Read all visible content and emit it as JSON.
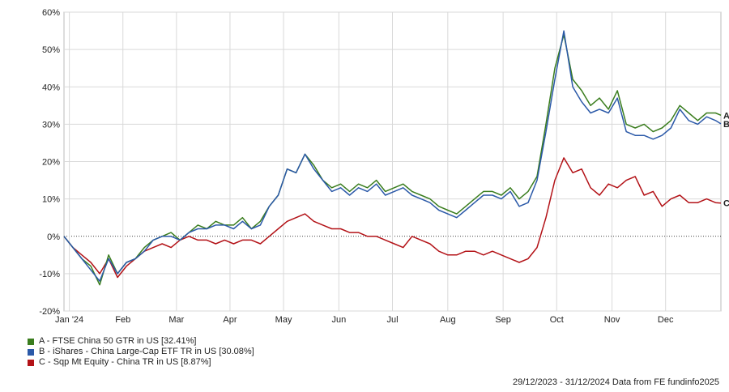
{
  "chart_data": {
    "type": "line",
    "ylim": [
      -20,
      60
    ],
    "y_ticks": [
      60,
      50,
      40,
      30,
      20,
      10,
      0,
      -10,
      -20
    ],
    "y_tick_labels": [
      "60%",
      "50%",
      "40%",
      "30%",
      "20%",
      "10%",
      "0%",
      "-10%",
      "-20%"
    ],
    "x_range_days": [
      0,
      368
    ],
    "x_ticks": [
      {
        "label": "Jan '24",
        "day": 3
      },
      {
        "label": "Feb",
        "day": 33
      },
      {
        "label": "Mar",
        "day": 63
      },
      {
        "label": "Apr",
        "day": 93
      },
      {
        "label": "May",
        "day": 123
      },
      {
        "label": "Jun",
        "day": 154
      },
      {
        "label": "Jul",
        "day": 184
      },
      {
        "label": "Aug",
        "day": 215
      },
      {
        "label": "Sep",
        "day": 246
      },
      {
        "label": "Oct",
        "day": 276
      },
      {
        "label": "Nov",
        "day": 307
      },
      {
        "label": "Dec",
        "day": 337
      }
    ],
    "grid": true,
    "zero_line": true,
    "series": [
      {
        "id": "A",
        "name": "A - FTSE China 50 GTR in US [32.41%]",
        "end_label": "A",
        "color": "#3a7d1e",
        "points": [
          [
            0,
            0
          ],
          [
            5,
            -3
          ],
          [
            10,
            -6
          ],
          [
            15,
            -8
          ],
          [
            20,
            -13
          ],
          [
            25,
            -5
          ],
          [
            30,
            -10
          ],
          [
            35,
            -7
          ],
          [
            40,
            -6
          ],
          [
            45,
            -3
          ],
          [
            50,
            -1
          ],
          [
            55,
            0
          ],
          [
            60,
            1
          ],
          [
            65,
            -1
          ],
          [
            70,
            1
          ],
          [
            75,
            3
          ],
          [
            80,
            2
          ],
          [
            85,
            4
          ],
          [
            90,
            3
          ],
          [
            95,
            3
          ],
          [
            100,
            5
          ],
          [
            105,
            2
          ],
          [
            110,
            4
          ],
          [
            115,
            8
          ],
          [
            120,
            11
          ],
          [
            125,
            18
          ],
          [
            130,
            17
          ],
          [
            135,
            22
          ],
          [
            140,
            19
          ],
          [
            145,
            15
          ],
          [
            150,
            13
          ],
          [
            155,
            14
          ],
          [
            160,
            12
          ],
          [
            165,
            14
          ],
          [
            170,
            13
          ],
          [
            175,
            15
          ],
          [
            180,
            12
          ],
          [
            185,
            13
          ],
          [
            190,
            14
          ],
          [
            195,
            12
          ],
          [
            200,
            11
          ],
          [
            205,
            10
          ],
          [
            210,
            8
          ],
          [
            215,
            7
          ],
          [
            220,
            6
          ],
          [
            225,
            8
          ],
          [
            230,
            10
          ],
          [
            235,
            12
          ],
          [
            240,
            12
          ],
          [
            245,
            11
          ],
          [
            250,
            13
          ],
          [
            255,
            10
          ],
          [
            260,
            12
          ],
          [
            265,
            16
          ],
          [
            270,
            30
          ],
          [
            275,
            45
          ],
          [
            280,
            54
          ],
          [
            285,
            42
          ],
          [
            290,
            39
          ],
          [
            295,
            35
          ],
          [
            300,
            37
          ],
          [
            305,
            34
          ],
          [
            310,
            39
          ],
          [
            315,
            30
          ],
          [
            320,
            29
          ],
          [
            325,
            30
          ],
          [
            330,
            28
          ],
          [
            335,
            29
          ],
          [
            340,
            31
          ],
          [
            345,
            35
          ],
          [
            350,
            33
          ],
          [
            355,
            31
          ],
          [
            360,
            33
          ],
          [
            365,
            33
          ],
          [
            368,
            32.4
          ]
        ]
      },
      {
        "id": "B",
        "name": "B - iShares - China Large-Cap ETF TR in US [30.08%]",
        "end_label": "B",
        "color": "#2b59a8",
        "points": [
          [
            0,
            0
          ],
          [
            5,
            -3
          ],
          [
            10,
            -6
          ],
          [
            15,
            -9
          ],
          [
            20,
            -12
          ],
          [
            25,
            -6
          ],
          [
            30,
            -10
          ],
          [
            35,
            -7
          ],
          [
            40,
            -6
          ],
          [
            45,
            -4
          ],
          [
            50,
            -1
          ],
          [
            55,
            0
          ],
          [
            60,
            0
          ],
          [
            65,
            -1
          ],
          [
            70,
            1
          ],
          [
            75,
            2
          ],
          [
            80,
            2
          ],
          [
            85,
            3
          ],
          [
            90,
            3
          ],
          [
            95,
            2
          ],
          [
            100,
            4
          ],
          [
            105,
            2
          ],
          [
            110,
            3
          ],
          [
            115,
            8
          ],
          [
            120,
            11
          ],
          [
            125,
            18
          ],
          [
            130,
            17
          ],
          [
            135,
            22
          ],
          [
            140,
            18
          ],
          [
            145,
            15
          ],
          [
            150,
            12
          ],
          [
            155,
            13
          ],
          [
            160,
            11
          ],
          [
            165,
            13
          ],
          [
            170,
            12
          ],
          [
            175,
            14
          ],
          [
            180,
            11
          ],
          [
            185,
            12
          ],
          [
            190,
            13
          ],
          [
            195,
            11
          ],
          [
            200,
            10
          ],
          [
            205,
            9
          ],
          [
            210,
            7
          ],
          [
            215,
            6
          ],
          [
            220,
            5
          ],
          [
            225,
            7
          ],
          [
            230,
            9
          ],
          [
            235,
            11
          ],
          [
            240,
            11
          ],
          [
            245,
            10
          ],
          [
            250,
            12
          ],
          [
            255,
            8
          ],
          [
            260,
            9
          ],
          [
            265,
            15
          ],
          [
            270,
            28
          ],
          [
            275,
            42
          ],
          [
            280,
            55
          ],
          [
            285,
            40
          ],
          [
            290,
            36
          ],
          [
            295,
            33
          ],
          [
            300,
            34
          ],
          [
            305,
            33
          ],
          [
            310,
            37
          ],
          [
            315,
            28
          ],
          [
            320,
            27
          ],
          [
            325,
            27
          ],
          [
            330,
            26
          ],
          [
            335,
            27
          ],
          [
            340,
            29
          ],
          [
            345,
            34
          ],
          [
            350,
            31
          ],
          [
            355,
            30
          ],
          [
            360,
            32
          ],
          [
            365,
            31
          ],
          [
            368,
            30.1
          ]
        ]
      },
      {
        "id": "C",
        "name": "C - Sqp Mt Equity - China TR in US [8.87%]",
        "end_label": "C",
        "color": "#b31217",
        "points": [
          [
            0,
            0
          ],
          [
            5,
            -3
          ],
          [
            10,
            -5
          ],
          [
            15,
            -7
          ],
          [
            20,
            -10
          ],
          [
            25,
            -6
          ],
          [
            30,
            -11
          ],
          [
            35,
            -8
          ],
          [
            40,
            -6
          ],
          [
            45,
            -4
          ],
          [
            50,
            -3
          ],
          [
            55,
            -2
          ],
          [
            60,
            -3
          ],
          [
            65,
            -1
          ],
          [
            70,
            0
          ],
          [
            75,
            -1
          ],
          [
            80,
            -1
          ],
          [
            85,
            -2
          ],
          [
            90,
            -1
          ],
          [
            95,
            -2
          ],
          [
            100,
            -1
          ],
          [
            105,
            -1
          ],
          [
            110,
            -2
          ],
          [
            115,
            0
          ],
          [
            120,
            2
          ],
          [
            125,
            4
          ],
          [
            130,
            5
          ],
          [
            135,
            6
          ],
          [
            140,
            4
          ],
          [
            145,
            3
          ],
          [
            150,
            2
          ],
          [
            155,
            2
          ],
          [
            160,
            1
          ],
          [
            165,
            1
          ],
          [
            170,
            0
          ],
          [
            175,
            0
          ],
          [
            180,
            -1
          ],
          [
            185,
            -2
          ],
          [
            190,
            -3
          ],
          [
            195,
            0
          ],
          [
            200,
            -1
          ],
          [
            205,
            -2
          ],
          [
            210,
            -4
          ],
          [
            215,
            -5
          ],
          [
            220,
            -5
          ],
          [
            225,
            -4
          ],
          [
            230,
            -4
          ],
          [
            235,
            -5
          ],
          [
            240,
            -4
          ],
          [
            245,
            -5
          ],
          [
            250,
            -6
          ],
          [
            255,
            -7
          ],
          [
            260,
            -6
          ],
          [
            265,
            -3
          ],
          [
            270,
            5
          ],
          [
            275,
            15
          ],
          [
            280,
            21
          ],
          [
            285,
            17
          ],
          [
            290,
            18
          ],
          [
            295,
            13
          ],
          [
            300,
            11
          ],
          [
            305,
            14
          ],
          [
            310,
            13
          ],
          [
            315,
            15
          ],
          [
            320,
            16
          ],
          [
            325,
            11
          ],
          [
            330,
            12
          ],
          [
            335,
            8
          ],
          [
            340,
            10
          ],
          [
            345,
            11
          ],
          [
            350,
            9
          ],
          [
            355,
            9
          ],
          [
            360,
            10
          ],
          [
            365,
            9
          ],
          [
            368,
            8.9
          ]
        ]
      }
    ]
  },
  "footer": {
    "text": "29/12/2023 - 31/12/2024 Data from FE fundinfo2025"
  }
}
